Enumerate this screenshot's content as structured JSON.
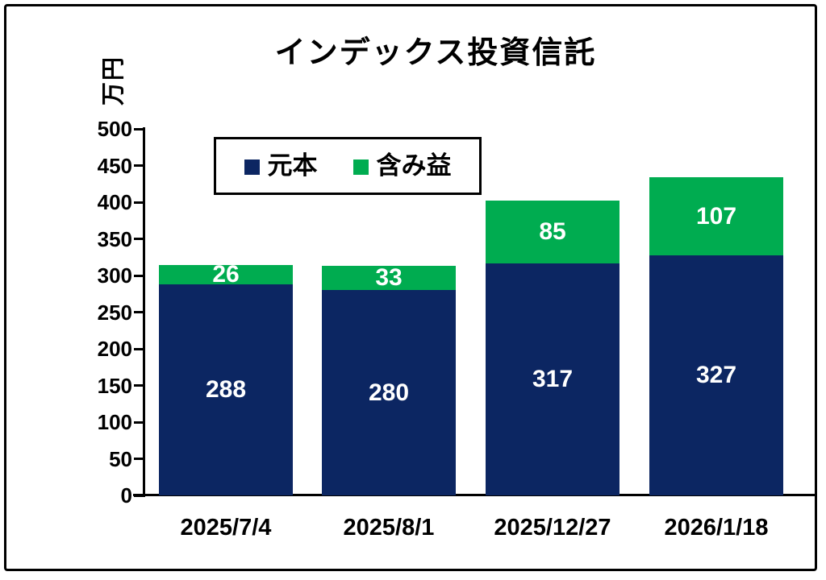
{
  "chart_data": {
    "type": "bar",
    "stacked": true,
    "title": "インデックス投資信託",
    "ylabel": "万円",
    "xlabel": "",
    "categories": [
      "2025/7/4",
      "2025/8/1",
      "2025/12/27",
      "2026/1/18"
    ],
    "series": [
      {
        "name": "元本",
        "color": "#0C2662",
        "values": [
          288,
          280,
          317,
          327
        ]
      },
      {
        "name": "含み益",
        "color": "#00AC50",
        "values": [
          26,
          33,
          85,
          107
        ]
      }
    ],
    "ylim": [
      0,
      500
    ],
    "yticks": [
      0,
      50,
      100,
      150,
      200,
      250,
      300,
      350,
      400,
      450,
      500
    ],
    "grid": false,
    "legend_position": "top-left-inside",
    "bar_label_color": "#FFFFFF",
    "axis_color": "#000000",
    "background_color": "#FFFFFF"
  }
}
